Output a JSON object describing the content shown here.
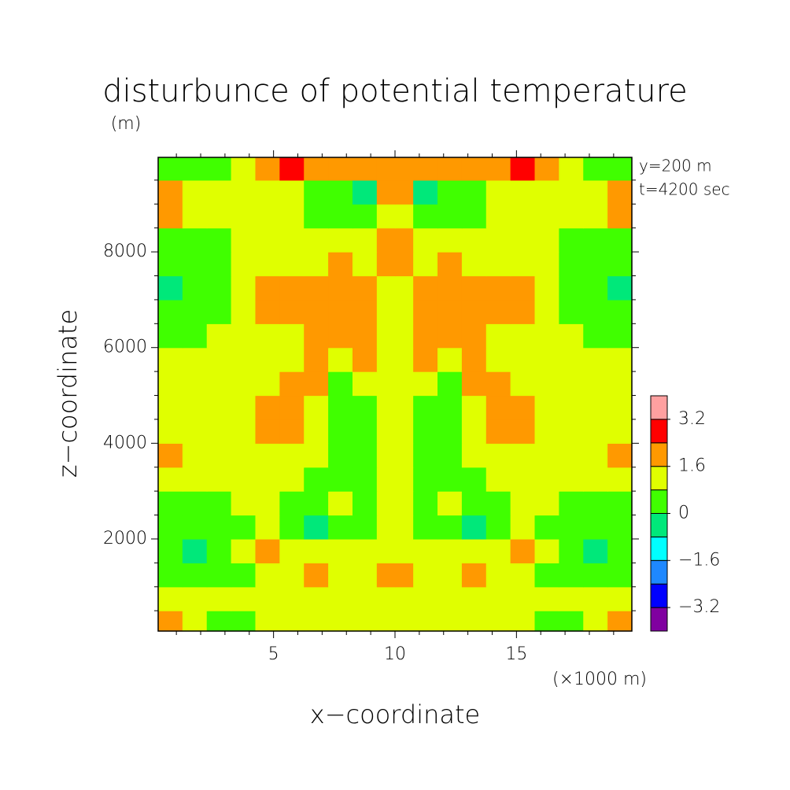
{
  "chart_data": {
    "type": "contour",
    "title": "disturbunce of potential temperature",
    "y_unit": "(m)",
    "x_unit": "(×1000 m)",
    "annotations": [
      "y=200 m",
      "t=4200 sec"
    ],
    "x_label": "x−coordinate",
    "y_label": "z−coordinate",
    "xlim": [
      0.25,
      19.75
    ],
    "ylim": [
      75,
      9975
    ],
    "xticks": [
      5,
      10,
      15
    ],
    "yticks": [
      2000,
      4000,
      6000,
      8000
    ],
    "xminorticks": [
      1,
      2,
      3,
      4,
      6,
      7,
      8,
      9,
      11,
      12,
      13,
      14,
      16,
      17,
      18,
      19
    ],
    "yminorticks": [
      500,
      1000,
      1500,
      2500,
      3000,
      3500,
      4500,
      5000,
      5500,
      6500,
      7000,
      7500,
      8500,
      9000,
      9500
    ],
    "x": [
      0.75,
      1.75,
      2.75,
      3.75,
      4.75,
      5.75,
      6.75,
      7.75,
      8.75,
      9.75,
      10.25,
      11.25,
      12.25,
      13.25,
      14.25,
      15.25,
      16.25,
      17.25,
      18.25,
      19.25
    ],
    "z": [
      250,
      750,
      1250,
      1750,
      2250,
      2750,
      3250,
      3750,
      4250,
      4750,
      5250,
      5750,
      6250,
      6750,
      7250,
      7750,
      8250,
      8750,
      9250,
      9750
    ],
    "values": [
      [
        2.0,
        1.2,
        0.4,
        0.4,
        1.2,
        1.2,
        1.2,
        1.2,
        1.2,
        1.2,
        1.2,
        1.2,
        1.2,
        1.2,
        1.2,
        1.2,
        0.4,
        0.4,
        1.2,
        2.0
      ],
      [
        1.2,
        1.2,
        1.2,
        1.2,
        1.2,
        1.2,
        1.2,
        1.2,
        1.2,
        1.2,
        1.2,
        1.2,
        1.2,
        1.2,
        1.2,
        1.2,
        1.2,
        1.2,
        1.2,
        1.2
      ],
      [
        0.4,
        0.4,
        0.4,
        0.4,
        1.2,
        1.2,
        2.0,
        1.2,
        1.2,
        2.0,
        2.0,
        1.2,
        1.2,
        2.0,
        1.2,
        1.2,
        0.4,
        0.4,
        0.4,
        0.4
      ],
      [
        0.4,
        -0.4,
        0.4,
        1.2,
        2.0,
        1.2,
        1.2,
        1.2,
        1.2,
        1.2,
        1.2,
        1.2,
        1.2,
        1.2,
        1.2,
        2.0,
        1.2,
        0.4,
        -0.4,
        0.4
      ],
      [
        0.4,
        0.4,
        0.4,
        0.4,
        1.2,
        0.4,
        -0.4,
        0.4,
        0.4,
        1.2,
        1.2,
        0.4,
        0.4,
        -0.4,
        0.4,
        1.2,
        0.4,
        0.4,
        0.4,
        0.4
      ],
      [
        0.4,
        0.4,
        0.4,
        1.2,
        1.2,
        0.4,
        0.4,
        1.2,
        0.4,
        1.2,
        1.2,
        0.4,
        1.2,
        0.4,
        0.4,
        1.2,
        1.2,
        0.4,
        0.4,
        0.4
      ],
      [
        1.2,
        1.2,
        1.2,
        1.2,
        1.2,
        1.2,
        0.4,
        0.4,
        0.4,
        1.2,
        1.2,
        0.4,
        0.4,
        0.4,
        1.2,
        1.2,
        1.2,
        1.2,
        1.2,
        1.2
      ],
      [
        2.0,
        1.2,
        1.2,
        1.2,
        1.2,
        1.2,
        1.2,
        0.4,
        0.4,
        1.2,
        1.2,
        0.4,
        0.4,
        1.2,
        1.2,
        1.2,
        1.2,
        1.2,
        1.2,
        2.0
      ],
      [
        1.2,
        1.2,
        1.2,
        1.2,
        2.0,
        2.0,
        1.2,
        0.4,
        0.4,
        1.2,
        1.2,
        0.4,
        0.4,
        1.2,
        2.0,
        2.0,
        1.2,
        1.2,
        1.2,
        1.2
      ],
      [
        1.2,
        1.2,
        1.2,
        1.2,
        2.0,
        2.0,
        1.2,
        0.4,
        0.4,
        1.2,
        1.2,
        0.4,
        0.4,
        1.2,
        2.0,
        2.0,
        1.2,
        1.2,
        1.2,
        1.2
      ],
      [
        1.2,
        1.2,
        1.2,
        1.2,
        1.2,
        2.0,
        2.0,
        0.4,
        1.2,
        1.2,
        1.2,
        1.2,
        0.4,
        2.0,
        2.0,
        1.2,
        1.2,
        1.2,
        1.2,
        1.2
      ],
      [
        1.2,
        1.2,
        1.2,
        1.2,
        1.2,
        1.2,
        2.0,
        1.2,
        2.0,
        1.2,
        1.2,
        2.0,
        1.2,
        2.0,
        1.2,
        1.2,
        1.2,
        1.2,
        1.2,
        1.2
      ],
      [
        0.4,
        0.4,
        1.2,
        1.2,
        1.2,
        1.2,
        2.0,
        2.0,
        2.0,
        1.2,
        1.2,
        2.0,
        2.0,
        2.0,
        1.2,
        1.2,
        1.2,
        1.2,
        0.4,
        0.4
      ],
      [
        0.4,
        0.4,
        0.4,
        1.2,
        2.0,
        2.0,
        2.0,
        2.0,
        2.0,
        1.2,
        1.2,
        2.0,
        2.0,
        2.0,
        2.0,
        2.0,
        1.2,
        0.4,
        0.4,
        0.4
      ],
      [
        -0.4,
        0.4,
        0.4,
        1.2,
        2.0,
        2.0,
        2.0,
        2.0,
        2.0,
        1.2,
        1.2,
        2.0,
        2.0,
        2.0,
        2.0,
        2.0,
        1.2,
        0.4,
        0.4,
        -0.4
      ],
      [
        0.4,
        0.4,
        0.4,
        1.2,
        1.2,
        1.2,
        1.2,
        2.0,
        1.2,
        2.0,
        2.0,
        1.2,
        2.0,
        1.2,
        1.2,
        1.2,
        1.2,
        0.4,
        0.4,
        0.4
      ],
      [
        0.4,
        0.4,
        0.4,
        1.2,
        1.2,
        1.2,
        1.2,
        1.2,
        1.2,
        2.0,
        2.0,
        1.2,
        1.2,
        1.2,
        1.2,
        1.2,
        1.2,
        0.4,
        0.4,
        0.4
      ],
      [
        2.0,
        1.2,
        1.2,
        1.2,
        1.2,
        1.2,
        0.4,
        0.4,
        0.4,
        1.2,
        1.2,
        0.4,
        0.4,
        0.4,
        1.2,
        1.2,
        1.2,
        1.2,
        1.2,
        2.0
      ],
      [
        2.0,
        1.2,
        1.2,
        1.2,
        1.2,
        1.2,
        0.4,
        0.4,
        -0.4,
        2.0,
        2.0,
        -0.4,
        0.4,
        0.4,
        1.2,
        1.2,
        1.2,
        1.2,
        1.2,
        2.0
      ],
      [
        0.4,
        0.4,
        0.4,
        1.2,
        2.0,
        2.8,
        2.0,
        2.0,
        2.0,
        2.0,
        2.0,
        2.0,
        2.0,
        2.0,
        2.0,
        2.8,
        2.0,
        1.2,
        0.4,
        0.4
      ]
    ],
    "levels": [
      -3.2,
      -2.4,
      -1.6,
      -0.8,
      0,
      0.8,
      1.6,
      2.4,
      3.2
    ],
    "colors": [
      "#8000a0",
      "#0000ff",
      "#1e88ff",
      "#00ffff",
      "#00e87a",
      "#40ff00",
      "#e0ff00",
      "#ff9900",
      "#ff0000",
      "#ffa0a0"
    ],
    "colorbar_ticks": [
      {
        "value": -3.2,
        "label": "−3.2"
      },
      {
        "value": -1.6,
        "label": "−1.6"
      },
      0,
      1.6,
      3.2
    ]
  }
}
